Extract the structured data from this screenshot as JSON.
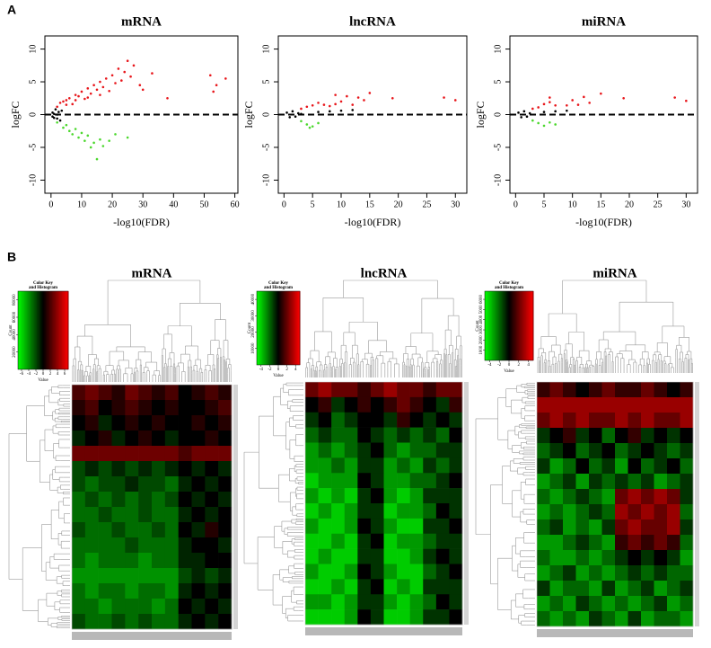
{
  "panel_labels": [
    "A",
    "B"
  ],
  "chart_data": [
    {
      "type": "scatter",
      "title": "mRNA",
      "x_label": "-log10(FDR)",
      "y_label": "logFC",
      "xlim": [
        -2,
        61
      ],
      "ylim": [
        -12,
        12
      ],
      "xticks": [
        0,
        10,
        20,
        30,
        40,
        50,
        60
      ],
      "yticks": [
        -10,
        -5,
        0,
        5,
        10
      ],
      "reference_line": 0,
      "series": [
        {
          "color": "#e8161b",
          "x": [
            2,
            3,
            4,
            5,
            6,
            7,
            8,
            9,
            10,
            11,
            12,
            13,
            14,
            15,
            16,
            17,
            18,
            19,
            20,
            21,
            22,
            23,
            24,
            25,
            26,
            27,
            29,
            30,
            33,
            38,
            52,
            53,
            54,
            57,
            5,
            8,
            12,
            16
          ],
          "values": [
            1.2,
            1.8,
            2,
            2.2,
            2.5,
            1.6,
            3,
            2.8,
            3.5,
            2.4,
            4,
            3.2,
            4.5,
            3.8,
            5,
            4.2,
            5.5,
            3.6,
            6,
            4.8,
            7,
            5.2,
            6.5,
            8.2,
            5.8,
            7.5,
            4.5,
            3.8,
            6.3,
            2.5,
            6,
            3.5,
            4.5,
            5.5,
            1.5,
            2.2,
            2.6,
            3
          ]
        },
        {
          "color": "#4cd82e",
          "x": [
            2,
            4,
            5,
            6,
            7,
            8,
            9,
            10,
            11,
            12,
            13,
            14,
            15,
            16,
            17,
            19,
            21,
            25
          ],
          "values": [
            -1.2,
            -2,
            -1.6,
            -2.5,
            -3,
            -2.2,
            -3.5,
            -2.8,
            -4,
            -3.2,
            -5,
            -4.3,
            -6.8,
            -3.8,
            -4.8,
            -4,
            -3,
            -3.5
          ]
        },
        {
          "color": "#000000",
          "x": [
            0.5,
            1,
            1.5,
            2,
            2.5,
            3,
            3.5,
            1,
            2,
            0.5
          ],
          "values": [
            0.3,
            -0.5,
            0.8,
            -0.6,
            0.4,
            -0.9,
            0.6,
            0.1,
            0,
            -0.3
          ]
        }
      ]
    },
    {
      "type": "scatter",
      "title": "lncRNA",
      "x_label": "-log10(FDR)",
      "y_label": "logFC",
      "xlim": [
        -1,
        32
      ],
      "ylim": [
        -12,
        12
      ],
      "xticks": [
        0,
        5,
        10,
        15,
        20,
        25,
        30
      ],
      "yticks": [
        -10,
        -5,
        0,
        5,
        10
      ],
      "reference_line": 0,
      "series": [
        {
          "color": "#e8161b",
          "x": [
            3,
            4,
            5,
            6,
            7,
            8,
            9,
            10,
            11,
            12,
            13,
            14,
            15,
            19,
            28,
            30,
            9
          ],
          "values": [
            0.9,
            1.2,
            1.4,
            1.8,
            1.5,
            1.3,
            1.6,
            2,
            2.8,
            1.5,
            2.6,
            2.2,
            3.3,
            2.5,
            2.6,
            2.2,
            3
          ]
        },
        {
          "color": "#4cd82e",
          "x": [
            3,
            4,
            5,
            6,
            4.5
          ],
          "values": [
            -1,
            -1.5,
            -1.8,
            -1.3,
            -2
          ]
        },
        {
          "color": "#000000",
          "x": [
            0.5,
            1,
            1.5,
            2,
            2.5,
            6,
            8,
            10,
            12,
            3
          ],
          "values": [
            0.3,
            -0.4,
            0.5,
            -0.3,
            0.2,
            0.4,
            0.5,
            0.6,
            0.7,
            0.1
          ]
        }
      ]
    },
    {
      "type": "scatter",
      "title": "miRNA",
      "x_label": "-log10(FDR)",
      "y_label": "logFC",
      "xlim": [
        -1,
        32
      ],
      "ylim": [
        -12,
        12
      ],
      "xticks": [
        0,
        5,
        10,
        15,
        20,
        25,
        30
      ],
      "yticks": [
        -10,
        -5,
        0,
        5,
        10
      ],
      "reference_line": 0,
      "series": [
        {
          "color": "#e8161b",
          "x": [
            3,
            4,
            5,
            6,
            7,
            9,
            10,
            11,
            12,
            13,
            15,
            19,
            28,
            30,
            6
          ],
          "values": [
            0.9,
            1.1,
            1.6,
            1.9,
            1.4,
            1.4,
            2.2,
            1.5,
            2.7,
            1.8,
            3.2,
            2.5,
            2.6,
            2.1,
            2.6
          ]
        },
        {
          "color": "#4cd82e",
          "x": [
            3,
            4,
            5,
            6,
            7
          ],
          "values": [
            -0.9,
            -1.3,
            -1.7,
            -1.2,
            -1.5
          ]
        },
        {
          "color": "#000000",
          "x": [
            0.5,
            1,
            1.5,
            2,
            2.5,
            5,
            7,
            9
          ],
          "values": [
            0.3,
            -0.4,
            0.5,
            -0.3,
            0.2,
            0.4,
            0.5,
            0.6
          ]
        }
      ]
    },
    {
      "type": "heatmap",
      "title": "mRNA",
      "colors": [
        "#00ff00",
        "#000000",
        "#ff0000"
      ],
      "color_key_title": [
        "Color Key",
        "and Histogram"
      ],
      "color_key_xlabel": "Value",
      "color_key_ylabel": "Count",
      "color_key_xlim": [
        -7,
        7
      ],
      "color_key_xticks": [
        -6,
        -4,
        -2,
        0,
        2,
        4,
        6
      ],
      "color_key_ylim": [
        0,
        90000
      ],
      "color_key_yticks": [
        20000,
        40000,
        60000,
        80000
      ],
      "values": [
        [
          2,
          3,
          2,
          1,
          3,
          2,
          1,
          2,
          0,
          1,
          2,
          1
        ],
        [
          1,
          2,
          0,
          1,
          2,
          1,
          0,
          1,
          0,
          0,
          1,
          2
        ],
        [
          0,
          1,
          -1,
          0,
          1,
          0,
          1,
          0,
          0,
          1,
          0,
          1
        ],
        [
          -1,
          0,
          1,
          -1,
          0,
          1,
          0,
          -1,
          0,
          0,
          1,
          0
        ],
        [
          3,
          3,
          3,
          3,
          3,
          3,
          3,
          3,
          2,
          3,
          3,
          3
        ],
        [
          -2,
          -1,
          -2,
          -1,
          -2,
          -1,
          -2,
          -1,
          0,
          -1,
          0,
          -1
        ],
        [
          -2,
          -3,
          -2,
          -2,
          -1,
          -2,
          -2,
          -3,
          -1,
          0,
          -1,
          0
        ],
        [
          -3,
          -2,
          -3,
          -2,
          -3,
          -2,
          -3,
          -2,
          0,
          -1,
          0,
          -1
        ],
        [
          -3,
          -3,
          -2,
          -3,
          -3,
          -2,
          -3,
          -3,
          -1,
          0,
          -1,
          0
        ],
        [
          -2,
          -3,
          -3,
          -2,
          -3,
          -3,
          -2,
          -3,
          0,
          -1,
          1,
          0
        ],
        [
          -3,
          -3,
          -3,
          -3,
          -2,
          -3,
          -3,
          -3,
          -1,
          0,
          0,
          -1
        ],
        [
          -3,
          -4,
          -3,
          -3,
          -3,
          -4,
          -3,
          -3,
          -1,
          -1,
          0,
          0
        ],
        [
          -4,
          -4,
          -4,
          -4,
          -4,
          -4,
          -4,
          -4,
          -2,
          -1,
          -2,
          -1
        ],
        [
          -3,
          -4,
          -3,
          -3,
          -4,
          -3,
          -3,
          -4,
          -1,
          0,
          -1,
          0
        ],
        [
          -3,
          -3,
          -4,
          -3,
          -3,
          -3,
          -4,
          -3,
          0,
          -1,
          0,
          -1
        ],
        [
          -2,
          -3,
          -3,
          -2,
          -3,
          -2,
          -3,
          -3,
          -1,
          0,
          -1,
          0
        ]
      ]
    },
    {
      "type": "heatmap",
      "title": "lncRNA",
      "colors": [
        "#00ff00",
        "#000000",
        "#ff0000"
      ],
      "color_key_title": [
        "Color Key",
        "and Histogram"
      ],
      "color_key_xlabel": "Value",
      "color_key_ylabel": "Count",
      "color_key_xlim": [
        -5,
        5
      ],
      "color_key_xticks": [
        -4,
        -2,
        0,
        2,
        4
      ],
      "color_key_ylim": [
        0,
        45000
      ],
      "color_key_yticks": [
        10000,
        20000,
        30000,
        40000
      ],
      "values": [
        [
          2,
          3,
          2,
          2,
          1,
          2,
          3,
          2,
          2,
          1,
          2,
          2
        ],
        [
          0,
          1,
          -1,
          0,
          1,
          0,
          1,
          2,
          1,
          0,
          -1,
          1
        ],
        [
          -1,
          0,
          -2,
          -1,
          0,
          0,
          -1,
          1,
          0,
          -1,
          0,
          -1
        ],
        [
          -2,
          -1,
          -2,
          -2,
          0,
          -1,
          -2,
          -1,
          -2,
          -1,
          -2,
          0
        ],
        [
          -3,
          -2,
          -3,
          -2,
          -1,
          0,
          -2,
          -3,
          -2,
          -2,
          -1,
          -1
        ],
        [
          -3,
          -3,
          -2,
          -3,
          -1,
          -1,
          -3,
          -2,
          -3,
          -1,
          -2,
          -1
        ],
        [
          -4,
          -3,
          -3,
          -3,
          0,
          -1,
          -3,
          -3,
          -2,
          -2,
          -1,
          0
        ],
        [
          -3,
          -4,
          -3,
          -4,
          -1,
          0,
          -3,
          -4,
          -3,
          -1,
          -1,
          -1
        ],
        [
          -4,
          -3,
          -4,
          -3,
          -1,
          -1,
          -4,
          -3,
          -3,
          -2,
          0,
          -1
        ],
        [
          -3,
          -4,
          -4,
          -3,
          0,
          -1,
          -3,
          -4,
          -4,
          -1,
          -1,
          0
        ],
        [
          -4,
          -4,
          -3,
          -4,
          -1,
          0,
          -4,
          -3,
          -3,
          -2,
          -1,
          -1
        ],
        [
          -4,
          -3,
          -4,
          -4,
          -1,
          -1,
          -4,
          -4,
          -3,
          -1,
          0,
          -1
        ],
        [
          -3,
          -4,
          -4,
          -3,
          0,
          -1,
          -3,
          -4,
          -4,
          -2,
          -1,
          0
        ],
        [
          -4,
          -4,
          -3,
          -4,
          -1,
          0,
          -4,
          -3,
          -4,
          -1,
          -1,
          -1
        ],
        [
          -3,
          -3,
          -4,
          -3,
          -1,
          -1,
          -3,
          -4,
          -3,
          -2,
          0,
          -1
        ],
        [
          -4,
          -4,
          -4,
          -3,
          0,
          -1,
          -4,
          -4,
          -3,
          -1,
          -1,
          0
        ]
      ]
    },
    {
      "type": "heatmap",
      "title": "miRNA",
      "colors": [
        "#00ff00",
        "#000000",
        "#ff0000"
      ],
      "color_key_title": [
        "Color Key",
        "and Histogram"
      ],
      "color_key_xlabel": "Value",
      "color_key_ylabel": "Count",
      "color_key_xlim": [
        -5,
        5
      ],
      "color_key_xticks": [
        -4,
        -2,
        0,
        2,
        4
      ],
      "color_key_ylim": [
        0,
        6800
      ],
      "color_key_yticks": [
        1000,
        2000,
        3000,
        4000,
        5000,
        6000
      ],
      "values": [
        [
          1,
          2,
          1,
          0,
          1,
          2,
          1,
          1,
          2,
          1,
          0,
          1
        ],
        [
          3,
          3,
          3,
          3,
          3,
          3,
          3,
          3,
          3,
          3,
          3,
          3
        ],
        [
          2,
          3,
          2,
          3,
          2,
          2,
          3,
          2,
          3,
          2,
          2,
          3
        ],
        [
          -1,
          0,
          1,
          -1,
          0,
          -2,
          0,
          1,
          -1,
          0,
          -1,
          0
        ],
        [
          -2,
          -1,
          0,
          -2,
          -1,
          0,
          -2,
          -1,
          0,
          -1,
          -2,
          -1
        ],
        [
          -1,
          -3,
          -2,
          0,
          -2,
          -1,
          -3,
          0,
          -2,
          -1,
          0,
          -2
        ],
        [
          -3,
          -2,
          -1,
          -3,
          -1,
          -2,
          -1,
          -2,
          -1,
          -3,
          -2,
          -1
        ],
        [
          -2,
          -3,
          -2,
          -1,
          -2,
          -3,
          2,
          3,
          2,
          3,
          2,
          -1
        ],
        [
          -3,
          -2,
          -3,
          -2,
          -1,
          -2,
          3,
          2,
          3,
          2,
          3,
          -2
        ],
        [
          -2,
          -1,
          -3,
          -2,
          -3,
          -1,
          2,
          3,
          2,
          2,
          3,
          -1
        ],
        [
          -3,
          -3,
          -2,
          -1,
          -2,
          -3,
          1,
          2,
          1,
          2,
          1,
          -2
        ],
        [
          -2,
          -3,
          -3,
          -2,
          -3,
          -2,
          -1,
          0,
          -1,
          0,
          -1,
          -3
        ],
        [
          -3,
          -2,
          -1,
          -3,
          -2,
          -3,
          -2,
          -1,
          -2,
          -1,
          -2,
          -2
        ],
        [
          -1,
          -3,
          -2,
          -2,
          -3,
          -1,
          -3,
          -2,
          -1,
          -3,
          -2,
          -1
        ],
        [
          -3,
          -2,
          -3,
          -1,
          -2,
          -3,
          -2,
          -3,
          -2,
          -1,
          -3,
          -2
        ],
        [
          -2,
          -3,
          -2,
          -3,
          -1,
          -2,
          -3,
          -1,
          -3,
          -2,
          -2,
          -3
        ]
      ]
    }
  ]
}
